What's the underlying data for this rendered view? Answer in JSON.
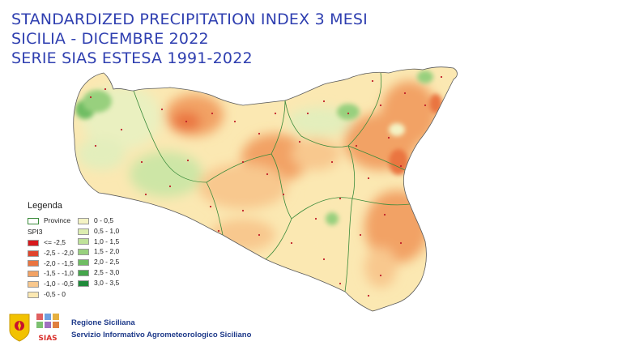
{
  "title": {
    "line1": "STANDARDIZED PRECIPITATION INDEX 3 MESI",
    "line2": "SICILIA - DICEMBRE 2022",
    "line3": "SERIE SIAS ESTESA 1991-2022"
  },
  "legend": {
    "title": "Legenda",
    "province_label": "Province",
    "index_label": "SPI3",
    "classes_left": [
      {
        "label": "<= -2,5",
        "color": "#d7191c"
      },
      {
        "label": "-2,5 - -2,0",
        "color": "#e0442c"
      },
      {
        "label": "-2,0 - -1,5",
        "color": "#ea7440"
      },
      {
        "label": "-1,5 - -1,0",
        "color": "#f2a265"
      },
      {
        "label": "-1,0 - -0,5",
        "color": "#f8c88e"
      },
      {
        "label": "-0,5 - 0",
        "color": "#fbe8b2"
      }
    ],
    "classes_right": [
      {
        "label": "0 - 0,5",
        "color": "#f4f3c4"
      },
      {
        "label": "0,5 - 1,0",
        "color": "#dcedb0"
      },
      {
        "label": "1,0 - 1,5",
        "color": "#bfe29a"
      },
      {
        "label": "1,5 - 2,0",
        "color": "#98d07e"
      },
      {
        "label": "2,0 - 2,5",
        "color": "#6fbd63"
      },
      {
        "label": "2,5 - 3,0",
        "color": "#45a64c"
      },
      {
        "label": "3,0 - 3,5",
        "color": "#1f8a3a"
      }
    ]
  },
  "footer": {
    "org_line1": "Regione Siciliana",
    "org_line2": "Servizio Informativo Agrometeorologico Siciliano",
    "logo_text": "SIAS",
    "logo_text_color": "#d9302c"
  }
}
